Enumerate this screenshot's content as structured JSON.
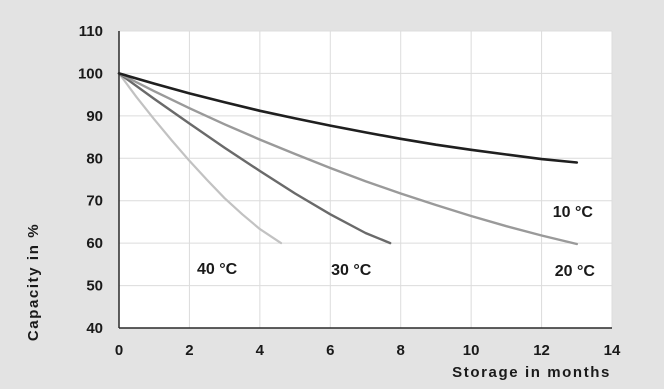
{
  "chart_data": {
    "type": "line",
    "title": "",
    "xlabel": "Storage in months",
    "ylabel": "Capacity in %",
    "xlim": [
      0,
      14
    ],
    "ylim": [
      40,
      110
    ],
    "x_ticks": [
      "0",
      "2",
      "4",
      "6",
      "8",
      "10",
      "12",
      "14"
    ],
    "y_ticks": [
      "40",
      "50",
      "60",
      "70",
      "80",
      "90",
      "100",
      "110"
    ],
    "grid": true,
    "legend": "none",
    "series": [
      {
        "name": "10 °C",
        "color": "#1f1f1f",
        "x": [
          0,
          1,
          2,
          3,
          4,
          5,
          6,
          7,
          8,
          9,
          10,
          11,
          12,
          13
        ],
        "y": [
          100,
          97.6,
          95.3,
          93.2,
          91.2,
          89.4,
          87.7,
          86.1,
          84.6,
          83.2,
          82.0,
          80.9,
          79.8,
          79.0
        ]
      },
      {
        "name": "20 °C",
        "color": "#9a9a9a",
        "x": [
          0,
          1,
          2,
          3,
          4,
          5,
          6,
          7,
          8,
          9,
          10,
          11,
          12,
          13
        ],
        "y": [
          100,
          95.8,
          91.8,
          88.0,
          84.4,
          81.0,
          77.7,
          74.6,
          71.7,
          69.0,
          66.4,
          64.0,
          61.8,
          59.8
        ]
      },
      {
        "name": "30 °C",
        "color": "#6a6a6a",
        "x": [
          0,
          1,
          2,
          3,
          4,
          5,
          6,
          7,
          7.7
        ],
        "y": [
          100,
          94.0,
          88.2,
          82.5,
          77.0,
          71.7,
          66.8,
          62.4,
          60
        ]
      },
      {
        "name": "40 °C",
        "color": "#c2c2c2",
        "x": [
          0,
          0.5,
          1,
          1.5,
          2,
          2.5,
          3,
          3.5,
          4,
          4.6
        ],
        "y": [
          100,
          94.4,
          89.2,
          84.2,
          79.4,
          74.9,
          70.6,
          66.8,
          63.3,
          60
        ]
      }
    ]
  }
}
